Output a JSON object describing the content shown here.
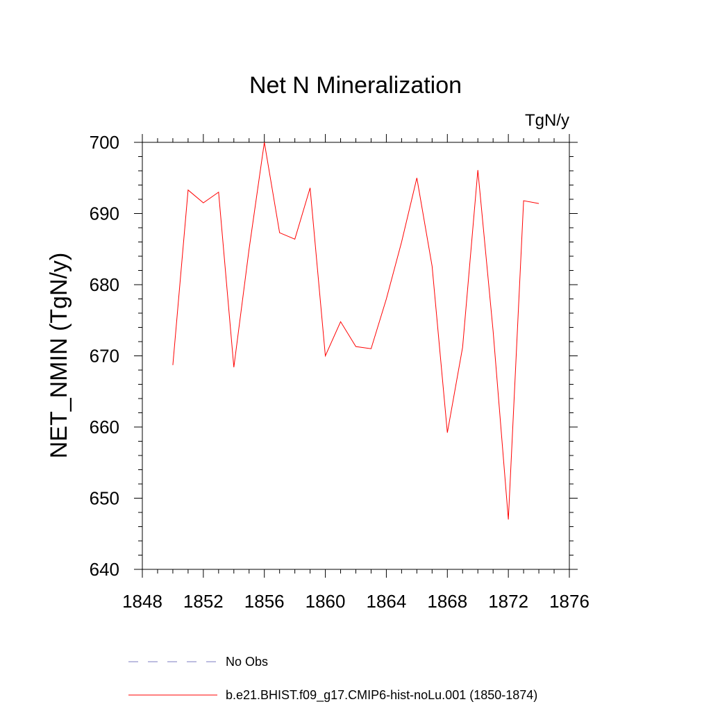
{
  "chart_data": {
    "type": "line",
    "title": "Net N Mineralization",
    "units_label": "TgN/y",
    "xlabel": "",
    "ylabel": "NET_NMIN  (TgN/y)",
    "xlim": [
      1848,
      1876
    ],
    "ylim": [
      640,
      700
    ],
    "x_ticks": [
      1848,
      1852,
      1856,
      1860,
      1864,
      1868,
      1872,
      1876
    ],
    "x_tick_labels": [
      "1848",
      "1852",
      "1856",
      "1860",
      "1864",
      "1868",
      "1872",
      "1876"
    ],
    "y_ticks": [
      640,
      650,
      660,
      670,
      680,
      690,
      700
    ],
    "y_tick_labels": [
      "640",
      "650",
      "660",
      "670",
      "680",
      "690",
      "700"
    ],
    "grid": false,
    "series": [
      {
        "name": "b.e21.BHIST.f09_g17.CMIP6-hist-noLu.001 (1850-1874)",
        "color": "#ff0000",
        "style": "solid",
        "x": [
          1850,
          1851,
          1852,
          1853,
          1854,
          1855,
          1856,
          1857,
          1858,
          1859,
          1860,
          1861,
          1862,
          1863,
          1864,
          1865,
          1866,
          1867,
          1868,
          1869,
          1870,
          1871,
          1872,
          1873,
          1874
        ],
        "values": [
          668.7,
          693.3,
          691.5,
          693.0,
          668.4,
          685.0,
          700.0,
          687.3,
          686.4,
          693.6,
          670.0,
          674.8,
          671.3,
          671.0,
          678.0,
          686.0,
          695.0,
          682.6,
          659.2,
          671.2,
          696.1,
          673.5,
          647.0,
          691.8,
          691.4
        ]
      }
    ],
    "legend": [
      {
        "label": "No Obs",
        "color": "#7b7bc0",
        "style": "dashed"
      },
      {
        "label": "b.e21.BHIST.f09_g17.CMIP6-hist-noLu.001 (1850-1874)",
        "color": "#ff0000",
        "style": "solid"
      }
    ],
    "legend_position": "bottom"
  }
}
